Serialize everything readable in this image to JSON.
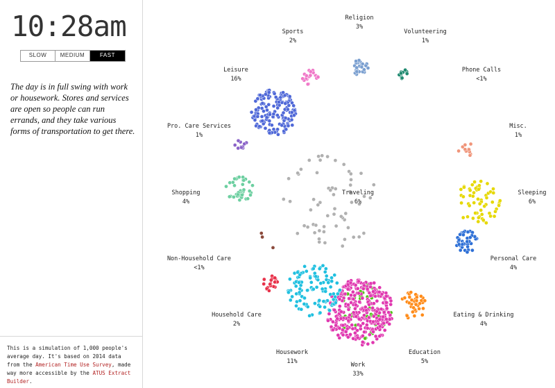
{
  "clock": "10:28am",
  "speed": {
    "options": [
      "SLOW",
      "MEDIUM",
      "FAST"
    ],
    "selected": "FAST"
  },
  "description": "The day is in full swing with work or housework. Stores and services are open so people can run errands, and they take various forms of transportation to get there.",
  "footnote": {
    "pre": "This is a simulation of 1,000 people's average day. It's based on 2014 data from the ",
    "link1": "American Time Use Survey",
    "mid": ", made way more accessible by the ",
    "link2": "ATUS Extract Builder",
    "post": "."
  },
  "activities": [
    {
      "name": "Religion",
      "pct": "3%",
      "color": "#7a9fd0",
      "count": 28
    },
    {
      "name": "Volunteering",
      "pct": "1%",
      "color": "#1f8a70",
      "count": 13
    },
    {
      "name": "Phone Calls",
      "pct": "<1%",
      "color": "#3aa0d8",
      "count": 0
    },
    {
      "name": "Misc.",
      "pct": "1%",
      "color": "#f0957a",
      "count": 12
    },
    {
      "name": "Sleeping",
      "pct": "6%",
      "color": "#e6d800",
      "count": 60
    },
    {
      "name": "Personal Care",
      "pct": "4%",
      "color": "#2d6fd6",
      "count": 40
    },
    {
      "name": "Eating & Drinking",
      "pct": "4%",
      "color": "#ff8c1a",
      "count": 40
    },
    {
      "name": "Education",
      "pct": "5%",
      "color": "#52c41a",
      "count": 50
    },
    {
      "name": "Work",
      "pct": "33%",
      "color": "#e038b0",
      "count": 330
    },
    {
      "name": "Housework",
      "pct": "11%",
      "color": "#20c0e0",
      "count": 110
    },
    {
      "name": "Household Care",
      "pct": "2%",
      "color": "#e8324a",
      "count": 20
    },
    {
      "name": "Non-Household Care",
      "pct": "<1%",
      "color": "#8b4a3c",
      "count": 3
    },
    {
      "name": "Shopping",
      "pct": "4%",
      "color": "#6ccfa0",
      "count": 40
    },
    {
      "name": "Pro. Care Services",
      "pct": "1%",
      "color": "#8a62c8",
      "count": 10
    },
    {
      "name": "Leisure",
      "pct": "16%",
      "color": "#4f68d8",
      "count": 160
    },
    {
      "name": "Sports",
      "pct": "2%",
      "color": "#f078c8",
      "count": 20
    },
    {
      "name": "Traveling",
      "pct": "6%",
      "color": "#b0b0b0",
      "count": 60
    }
  ]
}
